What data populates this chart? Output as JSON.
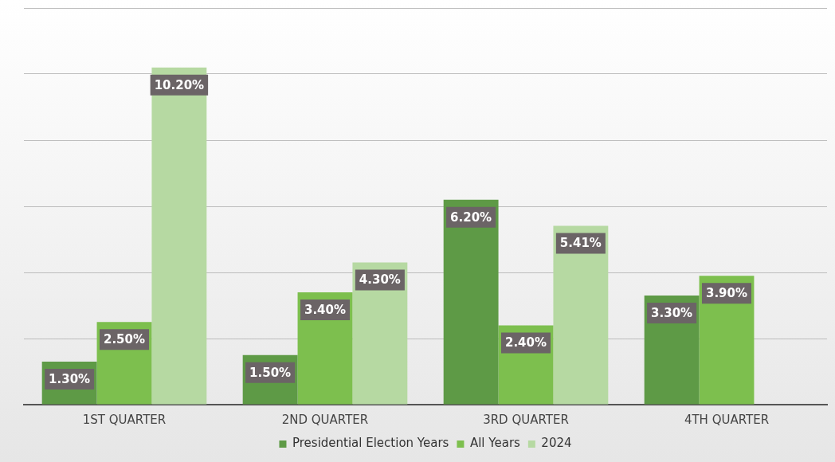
{
  "chart_data": {
    "type": "bar",
    "categories": [
      "1ST QUARTER",
      "2ND QUARTER",
      "3RD QUARTER",
      "4TH QUARTER"
    ],
    "series": [
      {
        "name": "Presidential Election Years",
        "color": "#5e9a46",
        "values": [
          1.3,
          1.5,
          6.2,
          3.3
        ],
        "value_labels": [
          "1.30%",
          "1.50%",
          "6.20%",
          "3.30%"
        ]
      },
      {
        "name": "All Years",
        "color": "#7dbf4e",
        "values": [
          2.5,
          3.4,
          2.4,
          3.9
        ],
        "value_labels": [
          "2.50%",
          "3.40%",
          "2.40%",
          "3.90%"
        ]
      },
      {
        "name": "2024",
        "color": "#b6d9a2",
        "values": [
          10.2,
          4.3,
          5.41,
          null
        ],
        "value_labels": [
          "10.20%",
          "4.30%",
          "5.41%",
          null
        ]
      }
    ],
    "ylim": [
      0,
      12
    ],
    "yticks": [
      {
        "value": 0,
        "label": null
      },
      {
        "value": 2,
        "label": null
      },
      {
        "value": 4,
        "label": null
      },
      {
        "value": 6,
        "label": null
      },
      {
        "value": 8,
        "label": null
      },
      {
        "value": 10,
        "label": null
      },
      {
        "value": 12,
        "label": null
      }
    ],
    "tick_labels": "x",
    "grid": "y",
    "legend": "bottom"
  }
}
